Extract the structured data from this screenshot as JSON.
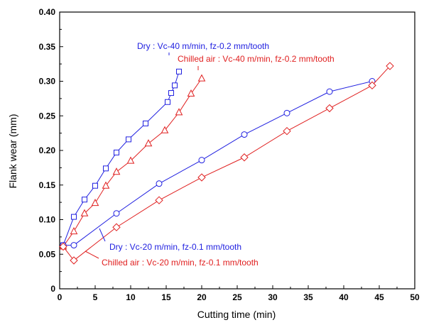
{
  "chart_data": {
    "type": "line",
    "xlabel": "Cutting time (min)",
    "ylabel": "Flank wear (mm)",
    "xlim": [
      0,
      50
    ],
    "ylim": [
      0,
      0.4
    ],
    "xticks": [
      0,
      5,
      10,
      15,
      20,
      25,
      30,
      35,
      40,
      45,
      50
    ],
    "yticks": [
      0,
      0.05,
      0.1,
      0.15,
      0.2,
      0.25,
      0.3,
      0.35,
      0.4
    ],
    "xtick_labels": [
      "0",
      "5",
      "10",
      "15",
      "20",
      "25",
      "30",
      "35",
      "40",
      "45",
      "50"
    ],
    "ytick_labels": [
      "0",
      "0.05",
      "0.10",
      "0.15",
      "0.20",
      "0.25",
      "0.30",
      "0.35",
      "0.40"
    ],
    "grid": false,
    "series": [
      {
        "name": "Dry : Vc-40 m/min, fz-0.2 mm/tooth",
        "color": "#2020e0",
        "marker": "square",
        "x": [
          0.5,
          2,
          3.5,
          5,
          6.5,
          8,
          9.7,
          12.1,
          15.2,
          15.7,
          16.2,
          16.8
        ],
        "y": [
          0.063,
          0.104,
          0.129,
          0.149,
          0.174,
          0.197,
          0.216,
          0.239,
          0.27,
          0.283,
          0.294,
          0.314
        ]
      },
      {
        "name": "Chilled air : Vc-40 m/min, fz-0.2 mm/tooth",
        "color": "#e02020",
        "marker": "triangle",
        "x": [
          0.5,
          2,
          3.5,
          5,
          6.5,
          8,
          10,
          12.5,
          14.8,
          16.8,
          18.5,
          20
        ],
        "y": [
          0.061,
          0.083,
          0.109,
          0.124,
          0.149,
          0.169,
          0.185,
          0.21,
          0.229,
          0.255,
          0.282,
          0.304
        ]
      },
      {
        "name": "Dry : Vc-20 m/min, fz-0.1 mm/tooth",
        "color": "#2020e0",
        "marker": "circle",
        "x": [
          0.5,
          2,
          8,
          14,
          20,
          26,
          32,
          38,
          44
        ],
        "y": [
          0.063,
          0.063,
          0.109,
          0.152,
          0.186,
          0.223,
          0.254,
          0.285,
          0.3
        ]
      },
      {
        "name": "Chilled air : Vc-20 m/min, fz-0.1 mm/tooth",
        "color": "#e02020",
        "marker": "diamond",
        "x": [
          0.5,
          2,
          8,
          14,
          20,
          26,
          32,
          38,
          44,
          46.5
        ],
        "y": [
          0.061,
          0.041,
          0.089,
          0.128,
          0.161,
          0.19,
          0.228,
          0.261,
          0.294,
          0.322
        ]
      }
    ],
    "annotations": [
      {
        "text": "Dry : Vc-40 m/min, fz-0.2 mm/tooth",
        "color": "#2020e0"
      },
      {
        "text": "Chilled air : Vc-40 m/min, fz-0.2 mm/tooth",
        "color": "#e02020"
      },
      {
        "text": "Dry : Vc-20 m/min, fz-0.1 mm/tooth",
        "color": "#2020e0"
      },
      {
        "text": "Chilled air : Vc-20 m/min, fz-0.1 mm/tooth",
        "color": "#e02020"
      }
    ]
  }
}
